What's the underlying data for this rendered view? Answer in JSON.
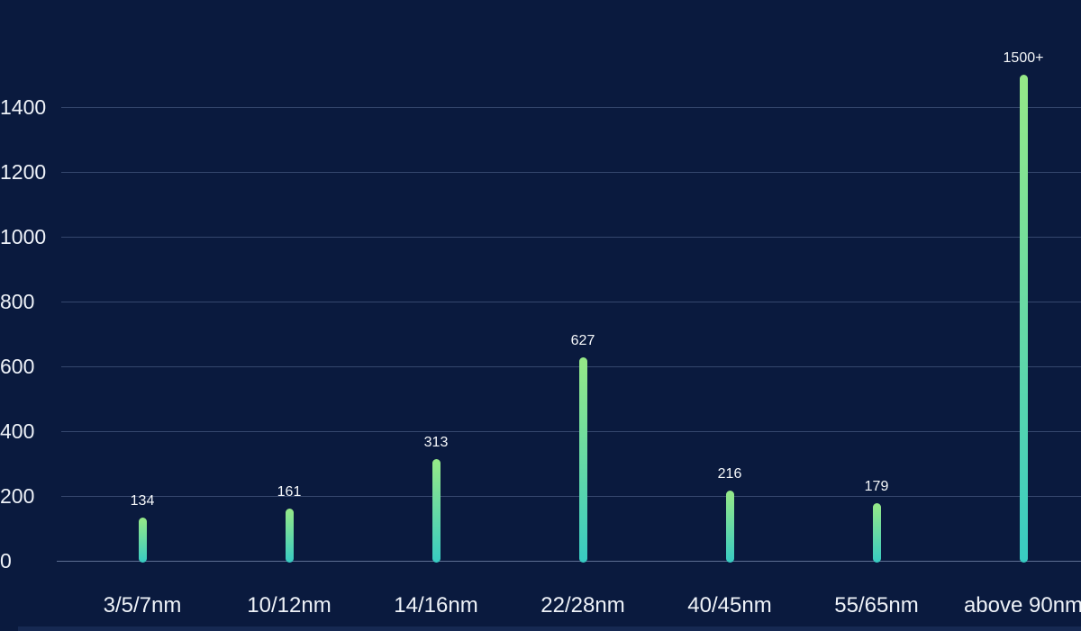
{
  "chart_data": {
    "type": "bar",
    "title": "",
    "categories": [
      "3/5/7nm",
      "10/12nm",
      "14/16nm",
      "22/28nm",
      "40/45nm",
      "55/65nm",
      "above 90nm"
    ],
    "values": [
      134,
      161,
      313,
      627,
      216,
      179,
      1500
    ],
    "value_labels": [
      "134",
      "161",
      "313",
      "627",
      "216",
      "179",
      "1500+"
    ],
    "yticks": [
      0,
      200,
      400,
      600,
      800,
      1000,
      1200,
      1400
    ],
    "ytick_labels": [
      "0",
      "200",
      "400",
      "600",
      "800",
      "1000",
      "1200",
      "1400"
    ],
    "ylim": [
      0,
      1560
    ],
    "grid": true,
    "legend": false,
    "colors": {
      "background": "#0a1a3e",
      "bar_gradient_top": "#96e987",
      "bar_gradient_bottom": "#38cbc2",
      "gridline": "rgba(134,158,198,0.35)",
      "axis_line": "rgba(162,182,216,0.55)",
      "tick_label": "#eef2f8",
      "value_label": "#f6f8fa",
      "bottom_strip": "rgba(80,110,180,0.18)"
    }
  }
}
